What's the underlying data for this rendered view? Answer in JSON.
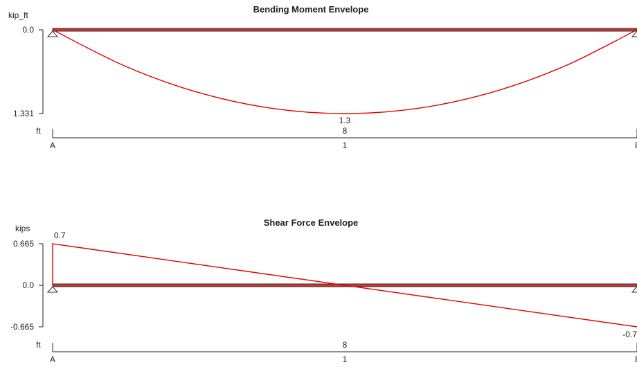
{
  "chart_data": [
    {
      "type": "line",
      "title": "Bending Moment Envelope",
      "ylabel": "kip_ft",
      "xlabel": "ft",
      "y_ticks": [
        "0.0",
        "1.331"
      ],
      "ylim": [
        0,
        1.331
      ],
      "xlim": [
        0,
        16
      ],
      "support_labels": [
        "A",
        "B"
      ],
      "span_labels": [
        {
          "x": 8,
          "label": "1"
        }
      ],
      "dimension_labels": [
        {
          "x": 8,
          "label": "8"
        }
      ],
      "series": [
        {
          "x": [
            0,
            2,
            4,
            6,
            8,
            10,
            12,
            14,
            16
          ],
          "y": [
            0.0,
            0.582,
            0.998,
            1.248,
            1.331,
            1.248,
            0.998,
            0.582,
            0.0
          ]
        }
      ],
      "annotations": [
        {
          "x": 8,
          "y": 1.331,
          "text": "1.3"
        }
      ]
    },
    {
      "type": "line",
      "title": "Shear Force Envelope",
      "ylabel": "kips",
      "xlabel": "ft",
      "y_ticks": [
        "0.665",
        "0.0",
        "-0.665"
      ],
      "ylim": [
        -0.665,
        0.665
      ],
      "xlim": [
        0,
        16
      ],
      "support_labels": [
        "A",
        "B"
      ],
      "span_labels": [
        {
          "x": 8,
          "label": "1"
        }
      ],
      "dimension_labels": [
        {
          "x": 8,
          "label": "8"
        }
      ],
      "series": [
        {
          "x": [
            0,
            0,
            16
          ],
          "y": [
            0.0,
            0.665,
            -0.665
          ]
        }
      ],
      "annotations": [
        {
          "x": 0,
          "y": 0.665,
          "text": "0.7"
        },
        {
          "x": 16,
          "y": -0.665,
          "text": "-0.7"
        }
      ]
    }
  ]
}
